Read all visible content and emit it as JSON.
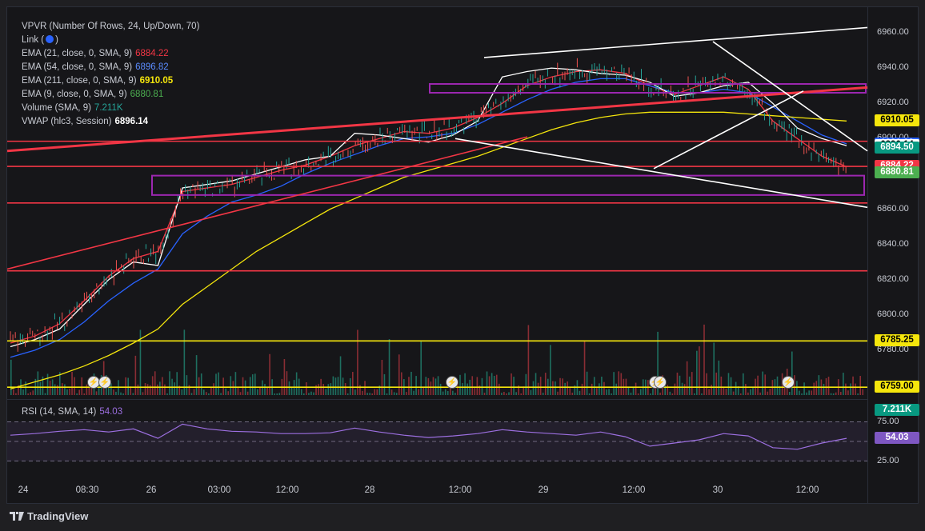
{
  "legend": {
    "vpvr": "VPVR (Number Of Rows, 24, Up/Down, 70)",
    "link_label": "Link (",
    "link_close": ")",
    "indicators": [
      {
        "name": "EMA (21, close, 0, SMA, 9)",
        "value": "6884.22",
        "color": "#f23645"
      },
      {
        "name": "EMA (54, close, 0, SMA, 9)",
        "value": "6896.82",
        "color": "#2962ff"
      },
      {
        "name": "EMA (211, close, 0, SMA, 9)",
        "value": "6910.05",
        "color": "#f5e60c"
      },
      {
        "name": "EMA (9, close, 0, SMA, 9)",
        "value": "6880.81",
        "color": "#4caf50"
      },
      {
        "name": "Volume (SMA, 9)",
        "value": "7.211K",
        "color": "#26a69a"
      },
      {
        "name": "VWAP (hlc3, Session)",
        "value": "6896.14",
        "color": "#ffffff"
      }
    ],
    "rsi": {
      "name": "RSI (14, SMA, 14)",
      "value": "54.03",
      "color": "#9c6fe0"
    }
  },
  "chart_data": {
    "type": "line",
    "symbol_interval": "",
    "price_axis": {
      "range": [
        6750,
        6970
      ],
      "ticks": [
        "6960.00",
        "6940.00",
        "6920.00",
        "6900.00",
        "6880.00",
        "6860.00",
        "6840.00",
        "6820.00",
        "6800.00",
        "6780.00"
      ]
    },
    "price_badges": [
      {
        "label": "6910.05",
        "price": 6910.05,
        "bg": "#f5e60c",
        "fg": "#000000"
      },
      {
        "label": "6896.82",
        "price": 6896.82,
        "bg": "#2962ff",
        "fg": "#ffffff"
      },
      {
        "label": "6896.14",
        "price": 6896.14,
        "bg": "#ffffff",
        "fg": "#000000"
      },
      {
        "label": "6894.50",
        "price": 6894.5,
        "bg": "#089981",
        "fg": "#ffffff"
      },
      {
        "label": "6884.22",
        "price": 6884.22,
        "bg": "#f23645",
        "fg": "#ffffff"
      },
      {
        "label": "6880.81",
        "price": 6880.81,
        "bg": "#4caf50",
        "fg": "#ffffff"
      },
      {
        "label": "6785.25",
        "price": 6785.25,
        "bg": "#f5e60c",
        "fg": "#000000"
      },
      {
        "label": "6759.00",
        "price": 6759.0,
        "bg": "#f5e60c",
        "fg": "#000000"
      },
      {
        "label": "7.211K",
        "price": 6746,
        "bg": "#089981",
        "fg": "#ffffff"
      }
    ],
    "horizontal_levels": [
      {
        "price": 6898.5,
        "color": "#f23645"
      },
      {
        "price": 6884.22,
        "color": "#f23645"
      },
      {
        "price": 6863.5,
        "color": "#f23645"
      },
      {
        "price": 6825.0,
        "color": "#f23645"
      },
      {
        "price": 6785.25,
        "color": "#f5e60c"
      },
      {
        "price": 6759.0,
        "color": "#f5e60c"
      }
    ],
    "rsi_axis": {
      "range": [
        0,
        100
      ],
      "ticks": [
        "75.00",
        "50.00",
        "25.00"
      ],
      "current": "54.03"
    },
    "x_ticks": [
      "24",
      "08:30",
      "26",
      "03:00",
      "12:00",
      "28",
      "12:00",
      "29",
      "12:00",
      "30",
      "12:00"
    ],
    "series": [
      {
        "name": "EMA (21, close, 0, SMA, 9)",
        "color": "#f23645",
        "values": [
          6784,
          6788,
          6795,
          6808,
          6822,
          6832,
          6836,
          6870,
          6872,
          6874,
          6878,
          6882,
          6885,
          6890,
          6896,
          6900,
          6904,
          6903,
          6906,
          6912,
          6920,
          6930,
          6935,
          6938,
          6939,
          6937,
          6930,
          6925,
          6930,
          6935,
          6928,
          6910,
          6900,
          6890,
          6884
        ]
      },
      {
        "name": "EMA (54, close, 0, SMA, 9)",
        "color": "#2962ff",
        "values": [
          6776,
          6780,
          6786,
          6796,
          6808,
          6818,
          6826,
          6846,
          6856,
          6864,
          6868,
          6873,
          6880,
          6886,
          6891,
          6896,
          6900,
          6901,
          6903,
          6908,
          6915,
          6922,
          6928,
          6932,
          6934,
          6934,
          6930,
          6926,
          6926,
          6928,
          6926,
          6918,
          6910,
          6902,
          6897
        ]
      },
      {
        "name": "EMA (211, close, 0, SMA, 9)",
        "color": "#f5e60c",
        "values": [
          6758,
          6762,
          6766,
          6771,
          6777,
          6784,
          6792,
          6806,
          6816,
          6826,
          6836,
          6844,
          6852,
          6860,
          6866,
          6872,
          6878,
          6882,
          6886,
          6890,
          6895,
          6900,
          6905,
          6909,
          6912,
          6914,
          6915,
          6915,
          6915,
          6915,
          6914,
          6913,
          6912,
          6911,
          6910
        ]
      },
      {
        "name": "VWAP (hlc3, Session)",
        "color": "#ffffff",
        "values": [
          6782,
          6786,
          6792,
          6806,
          6820,
          6830,
          6828,
          6872,
          6874,
          6876,
          6880,
          6884,
          6888,
          6890,
          6903,
          6902,
          6900,
          6898,
          6902,
          6910,
          6935,
          6938,
          6940,
          6939,
          6937,
          6936,
          6932,
          6924,
          6926,
          6930,
          6932,
          6920,
          6906,
          6900,
          6896
        ]
      },
      {
        "name": "RSI (14, SMA, 14)",
        "color": "#9c6fe0",
        "values": [
          58,
          60,
          63,
          65,
          62,
          66,
          54,
          72,
          66,
          63,
          62,
          60,
          60,
          61,
          67,
          62,
          58,
          55,
          57,
          60,
          65,
          62,
          60,
          58,
          62,
          56,
          44,
          48,
          52,
          60,
          57,
          42,
          40,
          48,
          54
        ]
      }
    ]
  }
}
